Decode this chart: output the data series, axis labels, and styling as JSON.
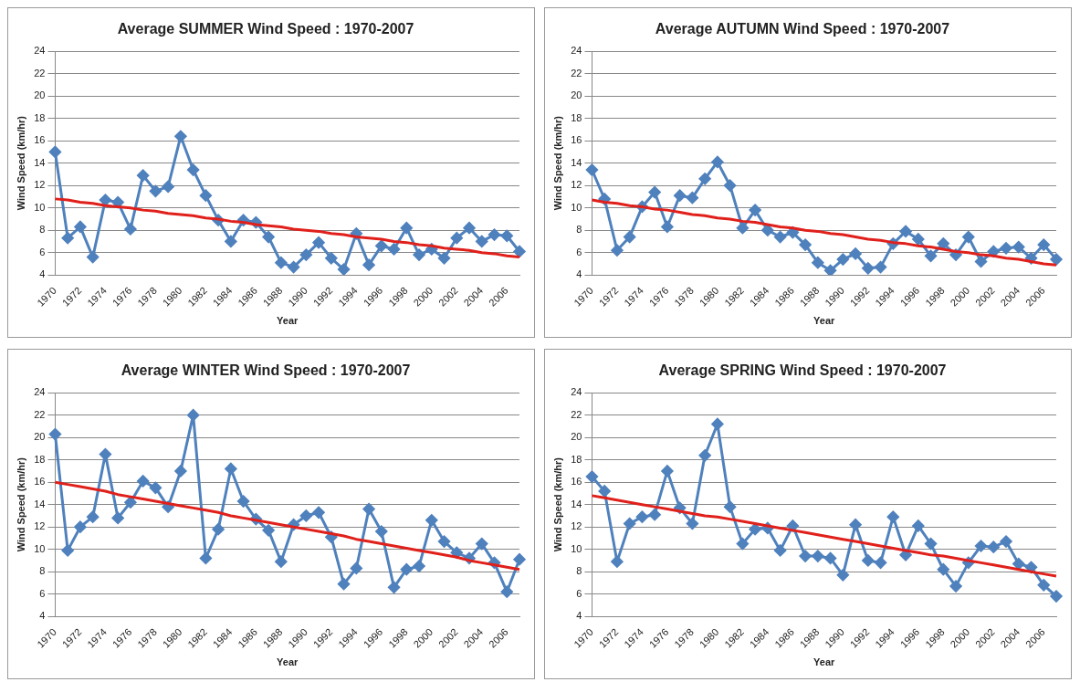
{
  "chart_data": [
    {
      "type": "line",
      "title": "Average SUMMER Wind Speed : 1970-2007",
      "xlabel": "Year",
      "ylabel": "Wind Speed (km/hr)",
      "categories": [
        "1970",
        null,
        "1972",
        null,
        "1974",
        null,
        "1976",
        null,
        "1978",
        null,
        "1980",
        null,
        "1982",
        null,
        "1984",
        null,
        "1986",
        null,
        "1988",
        null,
        "1990",
        null,
        "1992",
        null,
        "1994",
        null,
        "1996",
        null,
        "1998",
        null,
        "2000",
        null,
        "2002",
        null,
        "2004",
        null,
        "2006",
        null
      ],
      "ylim": [
        4,
        24
      ],
      "yticks": [
        4,
        6,
        8,
        10,
        12,
        14,
        16,
        18,
        20,
        22,
        24
      ],
      "grid": "y",
      "legend": false,
      "marker": "diamond",
      "series": [
        {
          "color": "#4f81bd",
          "values": [
            15.0,
            7.3,
            8.3,
            5.6,
            10.7,
            10.5,
            8.1,
            12.9,
            11.5,
            11.9,
            16.4,
            13.4,
            11.1,
            8.9,
            7.0,
            8.9,
            8.7,
            7.4,
            5.1,
            4.7,
            5.8,
            6.9,
            5.5,
            4.5,
            7.7,
            4.9,
            6.6,
            6.3,
            8.2,
            5.8,
            6.3,
            5.5,
            7.3,
            8.2,
            7.0,
            7.6,
            7.5,
            6.1
          ]
        },
        {
          "color": "#e0201b",
          "marker": "none",
          "values": [
            10.8,
            10.7,
            10.5,
            10.4,
            10.2,
            10.1,
            10.0,
            9.8,
            9.7,
            9.5,
            9.4,
            9.3,
            9.1,
            9.0,
            8.8,
            8.7,
            8.5,
            8.4,
            8.3,
            8.1,
            8.0,
            7.9,
            7.7,
            7.6,
            7.4,
            7.3,
            7.2,
            7.0,
            6.9,
            6.7,
            6.6,
            6.4,
            6.3,
            6.2,
            6.0,
            5.9,
            5.7,
            5.6
          ]
        }
      ]
    },
    {
      "type": "line",
      "title": "Average AUTUMN Wind Speed : 1970-2007",
      "xlabel": "Year",
      "ylabel": "Wind Speed (km/hr)",
      "categories": [
        "1970",
        null,
        "1972",
        null,
        "1974",
        null,
        "1976",
        null,
        "1978",
        null,
        "1980",
        null,
        "1982",
        null,
        "1984",
        null,
        "1986",
        null,
        "1988",
        null,
        "1990",
        null,
        "1992",
        null,
        "1994",
        null,
        "1996",
        null,
        "1998",
        null,
        "2000",
        null,
        "2002",
        null,
        "2004",
        null,
        "2006",
        null
      ],
      "ylim": [
        4,
        24
      ],
      "yticks": [
        4,
        6,
        8,
        10,
        12,
        14,
        16,
        18,
        20,
        22,
        24
      ],
      "grid": "y",
      "legend": false,
      "marker": "diamond",
      "series": [
        {
          "color": "#4f81bd",
          "values": [
            13.4,
            10.8,
            6.2,
            7.4,
            10.1,
            11.4,
            8.3,
            11.1,
            10.9,
            12.6,
            14.1,
            12.0,
            8.2,
            9.8,
            8.0,
            7.4,
            7.8,
            6.7,
            5.1,
            4.4,
            5.4,
            5.9,
            4.6,
            4.7,
            6.8,
            7.9,
            7.2,
            5.7,
            6.8,
            5.8,
            7.4,
            5.2,
            6.1,
            6.4,
            6.5,
            5.5,
            6.7,
            5.4
          ]
        },
        {
          "color": "#e0201b",
          "marker": "none",
          "values": [
            10.7,
            10.5,
            10.4,
            10.2,
            10.1,
            9.9,
            9.8,
            9.6,
            9.4,
            9.3,
            9.1,
            9.0,
            8.8,
            8.7,
            8.5,
            8.3,
            8.2,
            8.0,
            7.9,
            7.7,
            7.6,
            7.4,
            7.2,
            7.1,
            6.9,
            6.8,
            6.6,
            6.5,
            6.3,
            6.1,
            6.0,
            5.8,
            5.7,
            5.5,
            5.4,
            5.2,
            5.0,
            4.9
          ]
        }
      ]
    },
    {
      "type": "line",
      "title": "Average WINTER Wind Speed : 1970-2007",
      "xlabel": "Year",
      "ylabel": "Wind Speed (km/hr)",
      "categories": [
        "1970",
        null,
        "1972",
        null,
        "1974",
        null,
        "1976",
        null,
        "1978",
        null,
        "1980",
        null,
        "1982",
        null,
        "1984",
        null,
        "1986",
        null,
        "1988",
        null,
        "1990",
        null,
        "1992",
        null,
        "1994",
        null,
        "1996",
        null,
        "1998",
        null,
        "2000",
        null,
        "2002",
        null,
        "2004",
        null,
        "2006",
        null
      ],
      "ylim": [
        4,
        24
      ],
      "yticks": [
        4,
        6,
        8,
        10,
        12,
        14,
        16,
        18,
        20,
        22,
        24
      ],
      "grid": "y",
      "legend": false,
      "marker": "diamond",
      "series": [
        {
          "color": "#4f81bd",
          "values": [
            20.3,
            9.9,
            12.0,
            12.9,
            18.5,
            12.8,
            14.2,
            16.1,
            15.5,
            13.8,
            17.0,
            22.0,
            9.2,
            11.8,
            17.2,
            14.3,
            12.7,
            11.7,
            8.9,
            12.2,
            13.0,
            13.3,
            11.1,
            6.9,
            8.3,
            13.6,
            11.6,
            6.6,
            8.2,
            8.5,
            12.6,
            10.7,
            9.7,
            9.2,
            10.5,
            8.8,
            6.2,
            9.1
          ]
        },
        {
          "color": "#e0201b",
          "marker": "none",
          "values": [
            16.0,
            15.8,
            15.6,
            15.4,
            15.2,
            14.9,
            14.7,
            14.5,
            14.3,
            14.1,
            13.9,
            13.7,
            13.5,
            13.3,
            13.0,
            12.8,
            12.6,
            12.4,
            12.2,
            12.0,
            11.8,
            11.6,
            11.4,
            11.2,
            10.9,
            10.7,
            10.5,
            10.3,
            10.1,
            9.9,
            9.7,
            9.5,
            9.3,
            9.0,
            8.8,
            8.6,
            8.4,
            8.2
          ]
        }
      ]
    },
    {
      "type": "line",
      "title": "Average SPRING Wind Speed : 1970-2007",
      "xlabel": "Year",
      "ylabel": "Wind Speed (km/hr)",
      "categories": [
        "1970",
        null,
        "1972",
        null,
        "1974",
        null,
        "1976",
        null,
        "1978",
        null,
        "1980",
        null,
        "1982",
        null,
        "1984",
        null,
        "1986",
        null,
        "1988",
        null,
        "1990",
        null,
        "1992",
        null,
        "1994",
        null,
        "1996",
        null,
        "1998",
        null,
        "2000",
        null,
        "2002",
        null,
        "2004",
        null,
        "2006",
        null
      ],
      "ylim": [
        4,
        24
      ],
      "yticks": [
        4,
        6,
        8,
        10,
        12,
        14,
        16,
        18,
        20,
        22,
        24
      ],
      "grid": "y",
      "legend": false,
      "marker": "diamond",
      "series": [
        {
          "color": "#4f81bd",
          "values": [
            16.5,
            15.2,
            8.9,
            12.3,
            12.9,
            13.1,
            17.0,
            13.7,
            12.3,
            18.4,
            21.2,
            13.8,
            10.5,
            11.8,
            11.9,
            9.9,
            12.1,
            9.4,
            9.4,
            9.2,
            7.7,
            12.2,
            9.0,
            8.8,
            12.9,
            9.5,
            12.1,
            10.5,
            8.2,
            6.7,
            8.8,
            10.3,
            10.2,
            10.7,
            8.7,
            8.4,
            6.8,
            5.8
          ]
        },
        {
          "color": "#e0201b",
          "marker": "none",
          "values": [
            14.8,
            14.6,
            14.4,
            14.2,
            14.0,
            13.8,
            13.6,
            13.4,
            13.2,
            13.0,
            12.9,
            12.7,
            12.5,
            12.3,
            12.1,
            11.9,
            11.7,
            11.5,
            11.3,
            11.1,
            10.9,
            10.7,
            10.5,
            10.3,
            10.1,
            9.9,
            9.7,
            9.5,
            9.4,
            9.2,
            9.0,
            8.8,
            8.6,
            8.4,
            8.2,
            8.0,
            7.8,
            7.6
          ]
        }
      ]
    }
  ]
}
